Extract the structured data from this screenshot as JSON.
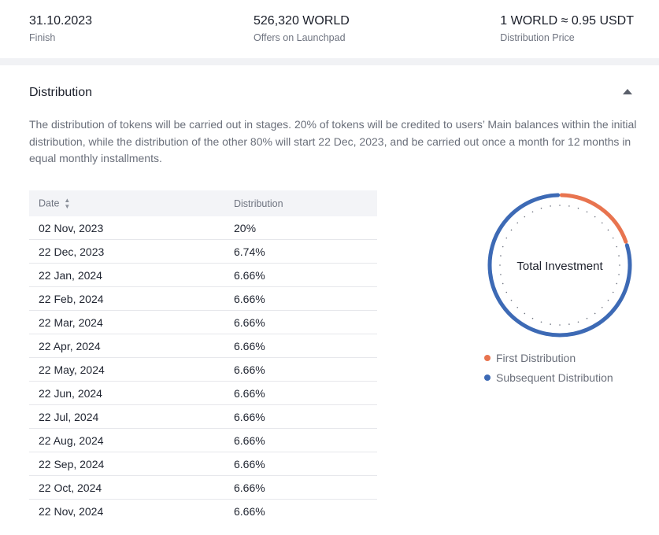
{
  "stats": [
    {
      "value": "31.10.2023",
      "label": "Finish"
    },
    {
      "value": "526,320 WORLD",
      "label": "Offers on Launchpad"
    },
    {
      "value": "1 WORLD ≈ 0.95 USDT",
      "label": "Distribution Price"
    }
  ],
  "section": {
    "title": "Distribution",
    "description": "The distribution of tokens will be carried out in stages. 20% of tokens will be credited to users’ Main balances within the initial distribution, while the distribution of the other 80% will start 22 Dec, 2023, and be carried out once a month for 12 months in equal monthly installments."
  },
  "table": {
    "headers": {
      "date": "Date",
      "distribution": "Distribution"
    },
    "sort_icon": "sort-arrows-icon",
    "rows": [
      {
        "date": "02 Nov, 2023",
        "distribution": "20%"
      },
      {
        "date": "22 Dec, 2023",
        "distribution": "6.74%"
      },
      {
        "date": "22 Jan, 2024",
        "distribution": "6.66%"
      },
      {
        "date": "22 Feb, 2024",
        "distribution": "6.66%"
      },
      {
        "date": "22 Mar, 2024",
        "distribution": "6.66%"
      },
      {
        "date": "22 Apr, 2024",
        "distribution": "6.66%"
      },
      {
        "date": "22 May, 2024",
        "distribution": "6.66%"
      },
      {
        "date": "22 Jun, 2024",
        "distribution": "6.66%"
      },
      {
        "date": "22 Jul, 2024",
        "distribution": "6.66%"
      },
      {
        "date": "22 Aug, 2024",
        "distribution": "6.66%"
      },
      {
        "date": "22 Sep, 2024",
        "distribution": "6.66%"
      },
      {
        "date": "22 Oct, 2024",
        "distribution": "6.66%"
      },
      {
        "date": "22 Nov, 2024",
        "distribution": "6.66%"
      }
    ]
  },
  "donut": {
    "center_label": "Total Investment",
    "segments": [
      {
        "name": "First Distribution",
        "percent": 20,
        "color": "#e8744f"
      },
      {
        "name": "Subsequent Distribution",
        "percent": 80,
        "color": "#3d6ab5"
      }
    ]
  },
  "icons": {
    "collapse": "chevron-up-icon"
  }
}
